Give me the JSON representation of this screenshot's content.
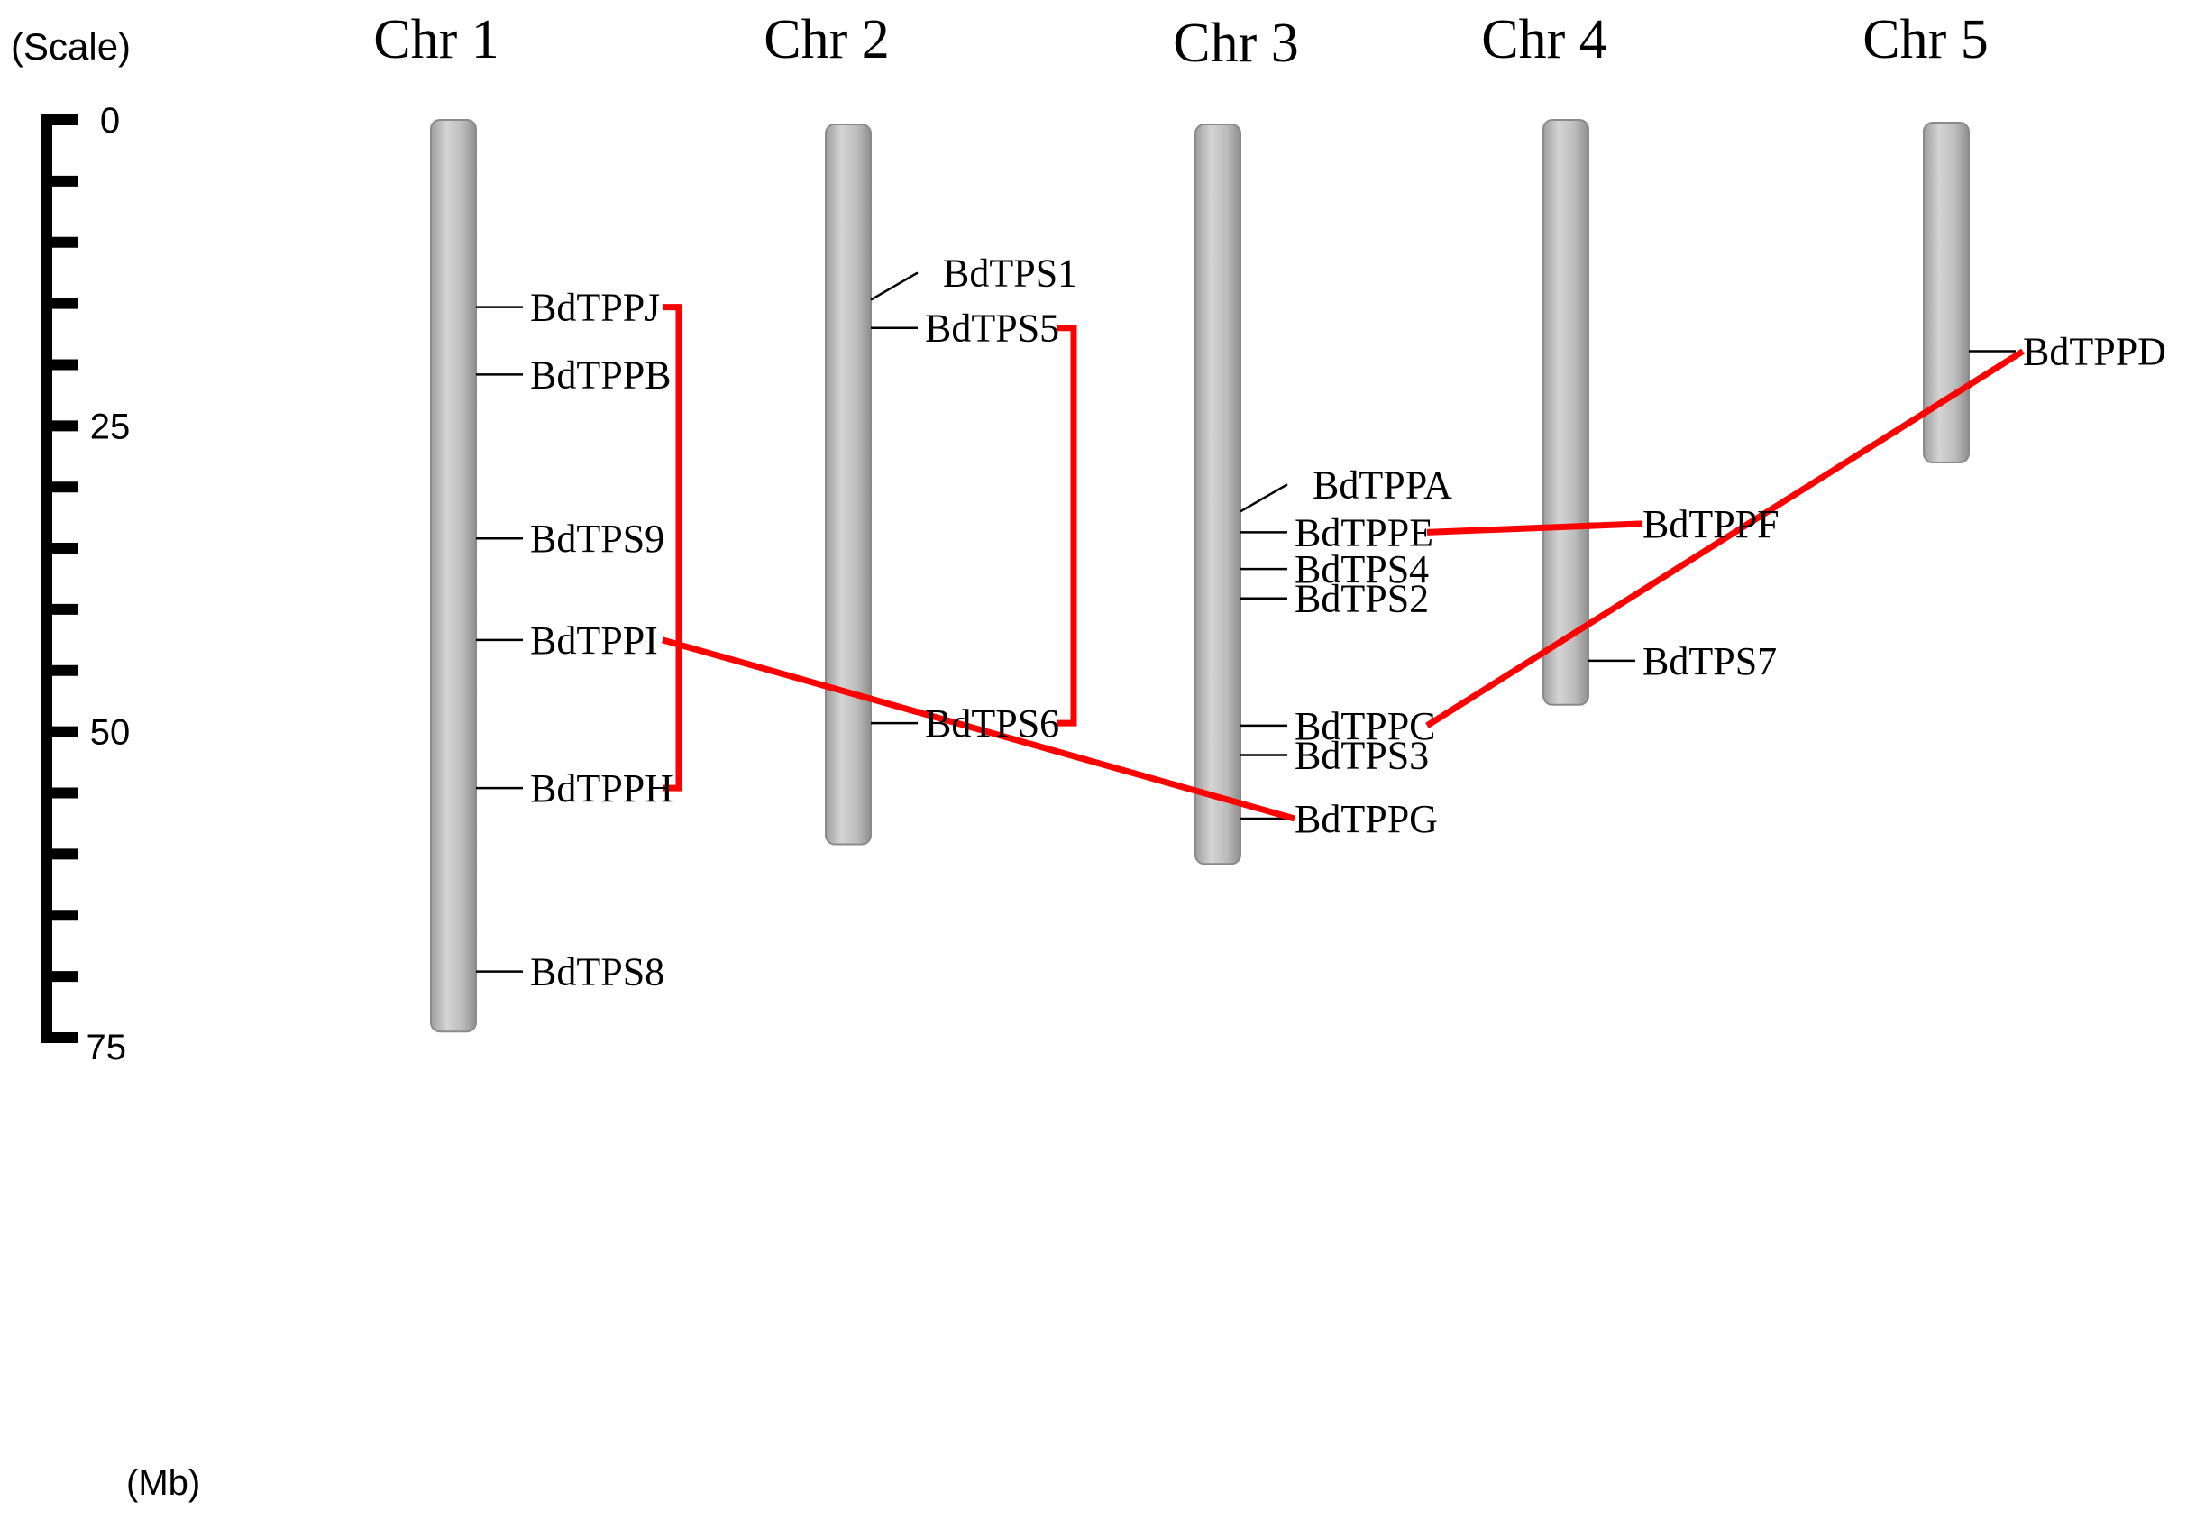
{
  "scale": {
    "caption": "(Scale)",
    "unit_label": "(Mb)",
    "max": 75,
    "minor_step": 5,
    "labeled_ticks": [
      0,
      25,
      50,
      75
    ]
  },
  "colors": {
    "chromosome": "#bdbdbd",
    "chromosome_edge": "#8a8a8a",
    "duplication_link": "#ff0000",
    "marker": "#000000"
  },
  "chromosomes": [
    {
      "id": "chr1",
      "name": "Chr 1",
      "length_mb": 74.5
    },
    {
      "id": "chr2",
      "name": "Chr 2",
      "length_mb": 59.2
    },
    {
      "id": "chr3",
      "name": "Chr 3",
      "length_mb": 60.8
    },
    {
      "id": "chr4",
      "name": "Chr 4",
      "length_mb": 47.8
    },
    {
      "id": "chr5",
      "name": "Chr 5",
      "length_mb": 28.0
    }
  ],
  "genes": [
    {
      "name": "BdTPPJ",
      "chr": "chr1",
      "pos_mb": 15.3
    },
    {
      "name": "BdTPPB",
      "chr": "chr1",
      "pos_mb": 20.8
    },
    {
      "name": "BdTPS9",
      "chr": "chr1",
      "pos_mb": 34.2
    },
    {
      "name": "BdTPPI",
      "chr": "chr1",
      "pos_mb": 42.5
    },
    {
      "name": "BdTPPH",
      "chr": "chr1",
      "pos_mb": 54.6
    },
    {
      "name": "BdTPS8",
      "chr": "chr1",
      "pos_mb": 69.6
    },
    {
      "name": "BdTPS1",
      "chr": "chr2",
      "pos_mb": 14.7
    },
    {
      "name": "BdTPS5",
      "chr": "chr2",
      "pos_mb": 17.0
    },
    {
      "name": "BdTPS6",
      "chr": "chr2",
      "pos_mb": 49.3
    },
    {
      "name": "BdTPPA",
      "chr": "chr3",
      "pos_mb": 32.0
    },
    {
      "name": "BdTPPE",
      "chr": "chr3",
      "pos_mb": 33.7
    },
    {
      "name": "BdTPS4",
      "chr": "chr3",
      "pos_mb": 36.7
    },
    {
      "name": "BdTPS2",
      "chr": "chr3",
      "pos_mb": 39.1
    },
    {
      "name": "BdTPPC",
      "chr": "chr3",
      "pos_mb": 49.5
    },
    {
      "name": "BdTPS3",
      "chr": "chr3",
      "pos_mb": 51.9
    },
    {
      "name": "BdTPPG",
      "chr": "chr3",
      "pos_mb": 57.1
    },
    {
      "name": "BdTPPF",
      "chr": "chr4",
      "pos_mb": 33.0
    },
    {
      "name": "BdTPS7",
      "chr": "chr4",
      "pos_mb": 44.2
    },
    {
      "name": "BdTPPD",
      "chr": "chr5",
      "pos_mb": 18.9
    }
  ],
  "duplication_pairs": [
    [
      "BdTPPJ",
      "BdTPPH"
    ],
    [
      "BdTPS5",
      "BdTPS6"
    ],
    [
      "BdTPPI",
      "BdTPPG"
    ],
    [
      "BdTPPE",
      "BdTPPF"
    ],
    [
      "BdTPPC",
      "BdTPPD"
    ]
  ]
}
